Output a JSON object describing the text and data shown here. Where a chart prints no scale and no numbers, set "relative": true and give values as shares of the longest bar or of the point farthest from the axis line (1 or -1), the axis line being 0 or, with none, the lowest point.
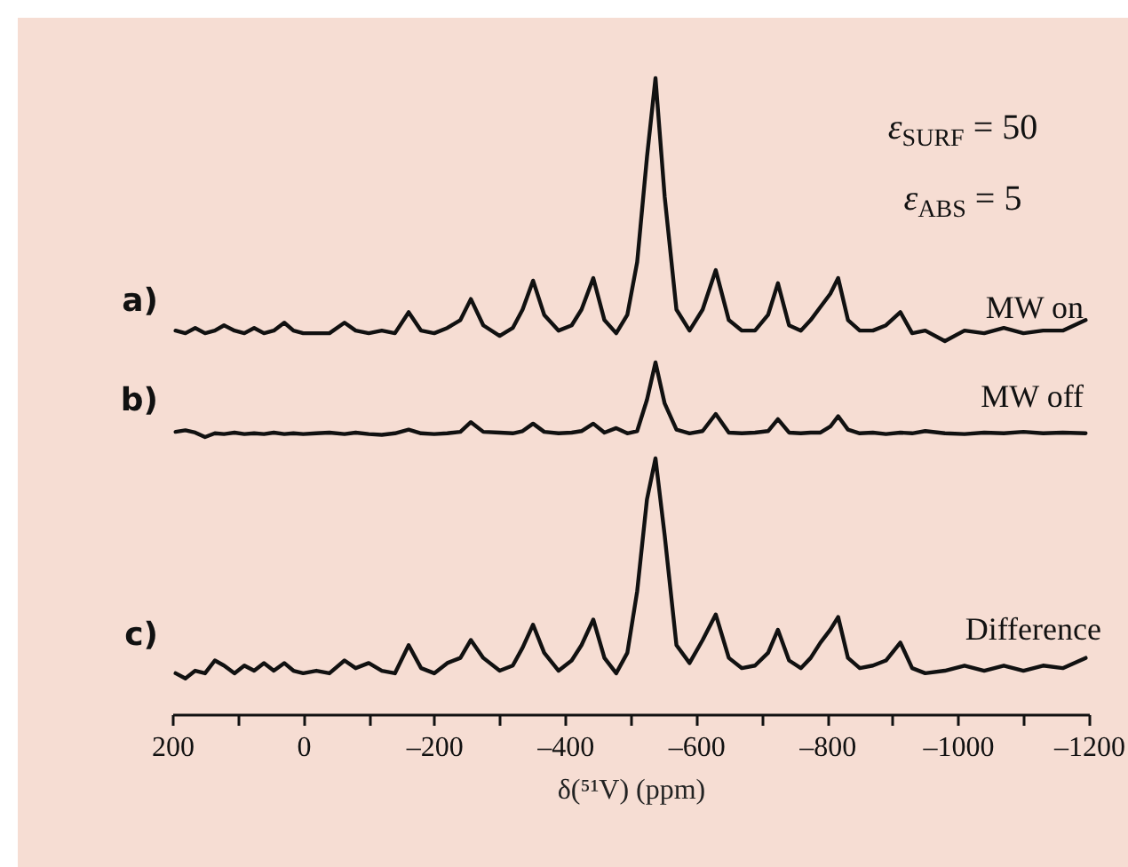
{
  "chart_data": [
    {
      "type": "line",
      "relative": true,
      "xlim": [
        200,
        -1200
      ],
      "tick_labels": false,
      "annotations": [
        "a)",
        "ε$_{SURF}$ = 50",
        "ε$_{ABS}$ = 5"
      ],
      "x": [
        195,
        180,
        165,
        150,
        135,
        121,
        105,
        90,
        75,
        60,
        45,
        29,
        15,
        0,
        -20,
        -40,
        -63,
        -80,
        -100,
        -120,
        -140,
        -161,
        -180,
        -200,
        -220,
        -240,
        -256,
        -275,
        -300,
        -320,
        -335,
        -351,
        -368,
        -390,
        -410,
        -425,
        -443,
        -460,
        -478,
        -495,
        -510,
        -525,
        -538,
        -552,
        -570,
        -590,
        -610,
        -630,
        -650,
        -670,
        -690,
        -710,
        -725,
        -742,
        -760,
        -775,
        -790,
        -805,
        -817,
        -832,
        -850,
        -870,
        -890,
        -912,
        -930,
        -950,
        -980,
        -1010,
        -1040,
        -1070,
        -1100,
        -1130,
        -1160,
        -1195
      ],
      "series": [
        {
          "name": "MW on",
          "color": "#111111",
          "values": [
            0.04,
            0.03,
            0.05,
            0.03,
            0.04,
            0.06,
            0.04,
            0.03,
            0.05,
            0.03,
            0.04,
            0.07,
            0.04,
            0.03,
            0.03,
            0.03,
            0.07,
            0.04,
            0.03,
            0.04,
            0.03,
            0.11,
            0.04,
            0.03,
            0.05,
            0.08,
            0.16,
            0.06,
            0.02,
            0.05,
            0.12,
            0.23,
            0.1,
            0.04,
            0.06,
            0.12,
            0.24,
            0.08,
            0.03,
            0.1,
            0.3,
            0.7,
            1.0,
            0.55,
            0.12,
            0.04,
            0.12,
            0.27,
            0.08,
            0.04,
            0.04,
            0.1,
            0.22,
            0.06,
            0.04,
            0.08,
            0.13,
            0.18,
            0.24,
            0.08,
            0.04,
            0.04,
            0.06,
            0.11,
            0.03,
            0.04,
            0.0,
            0.04,
            0.03,
            0.05,
            0.03,
            0.04,
            0.04,
            0.08
          ]
        }
      ]
    },
    {
      "type": "line",
      "relative": true,
      "xlim": [
        200,
        -1200
      ],
      "tick_labels": false,
      "annotations": [
        "b)"
      ],
      "x": [
        195,
        180,
        165,
        150,
        135,
        121,
        105,
        90,
        75,
        60,
        45,
        29,
        15,
        0,
        -20,
        -40,
        -63,
        -80,
        -100,
        -120,
        -140,
        -161,
        -180,
        -200,
        -220,
        -240,
        -256,
        -275,
        -300,
        -320,
        -335,
        -351,
        -368,
        -390,
        -410,
        -425,
        -443,
        -460,
        -478,
        -495,
        -510,
        -525,
        -538,
        -552,
        -570,
        -590,
        -610,
        -630,
        -650,
        -670,
        -690,
        -710,
        -725,
        -742,
        -760,
        -775,
        -790,
        -805,
        -817,
        -832,
        -850,
        -870,
        -890,
        -912,
        -930,
        -950,
        -980,
        -1010,
        -1040,
        -1070,
        -1100,
        -1130,
        -1160,
        -1195
      ],
      "series": [
        {
          "name": "MW off",
          "color": "#111111",
          "values": [
            0.07,
            0.09,
            0.06,
            0.0,
            0.05,
            0.04,
            0.06,
            0.04,
            0.05,
            0.04,
            0.06,
            0.04,
            0.05,
            0.04,
            0.05,
            0.06,
            0.04,
            0.06,
            0.04,
            0.03,
            0.05,
            0.1,
            0.05,
            0.04,
            0.05,
            0.07,
            0.2,
            0.07,
            0.06,
            0.05,
            0.08,
            0.18,
            0.07,
            0.05,
            0.06,
            0.08,
            0.18,
            0.06,
            0.12,
            0.05,
            0.08,
            0.5,
            1.0,
            0.45,
            0.1,
            0.05,
            0.08,
            0.31,
            0.06,
            0.05,
            0.06,
            0.08,
            0.24,
            0.06,
            0.05,
            0.06,
            0.06,
            0.14,
            0.28,
            0.1,
            0.05,
            0.06,
            0.04,
            0.06,
            0.05,
            0.08,
            0.05,
            0.04,
            0.06,
            0.05,
            0.07,
            0.05,
            0.06,
            0.05
          ]
        }
      ]
    },
    {
      "type": "line",
      "relative": true,
      "xlim": [
        200,
        -1200
      ],
      "tick_labels": "x",
      "xlabel": "δ(⁵¹V) (ppm)",
      "annotations": [
        "c)"
      ],
      "xticks": [
        200,
        {
          "value": 100,
          "label": null
        },
        0,
        {
          "value": -100,
          "label": null
        },
        {
          "value": -200,
          "label": "–200"
        },
        {
          "value": -300,
          "label": null
        },
        {
          "value": -400,
          "label": "–400"
        },
        {
          "value": -500,
          "label": null
        },
        {
          "value": -600,
          "label": "–600"
        },
        {
          "value": -700,
          "label": null
        },
        {
          "value": -800,
          "label": "–800"
        },
        {
          "value": -900,
          "label": null
        },
        {
          "value": -1000,
          "label": "–1000"
        },
        {
          "value": -1100,
          "label": null
        },
        {
          "value": -1200,
          "label": "–1200"
        }
      ],
      "x": [
        195,
        180,
        165,
        150,
        135,
        121,
        105,
        90,
        75,
        60,
        45,
        29,
        15,
        0,
        -20,
        -40,
        -63,
        -80,
        -100,
        -120,
        -140,
        -161,
        -180,
        -200,
        -220,
        -240,
        -256,
        -275,
        -300,
        -320,
        -335,
        -351,
        -368,
        -390,
        -410,
        -425,
        -443,
        -460,
        -478,
        -495,
        -510,
        -525,
        -538,
        -552,
        -570,
        -590,
        -610,
        -630,
        -650,
        -670,
        -690,
        -710,
        -725,
        -742,
        -760,
        -775,
        -790,
        -805,
        -817,
        -832,
        -850,
        -870,
        -890,
        -912,
        -930,
        -950,
        -980,
        -1010,
        -1040,
        -1070,
        -1100,
        -1130,
        -1160,
        -1195
      ],
      "series": [
        {
          "name": "Difference",
          "color": "#111111",
          "values": [
            0.16,
            0.14,
            0.17,
            0.16,
            0.21,
            0.19,
            0.16,
            0.19,
            0.17,
            0.2,
            0.17,
            0.2,
            0.17,
            0.16,
            0.17,
            0.16,
            0.21,
            0.18,
            0.2,
            0.17,
            0.16,
            0.27,
            0.18,
            0.16,
            0.2,
            0.22,
            0.29,
            0.22,
            0.17,
            0.19,
            0.26,
            0.35,
            0.24,
            0.17,
            0.21,
            0.27,
            0.37,
            0.22,
            0.16,
            0.24,
            0.48,
            0.84,
            1.0,
            0.7,
            0.27,
            0.2,
            0.29,
            0.39,
            0.22,
            0.18,
            0.19,
            0.24,
            0.33,
            0.21,
            0.18,
            0.22,
            0.28,
            0.33,
            0.38,
            0.22,
            0.18,
            0.19,
            0.21,
            0.28,
            0.18,
            0.16,
            0.17,
            0.19,
            0.17,
            0.19,
            0.17,
            0.19,
            0.18,
            0.22
          ]
        }
      ]
    }
  ]
}
